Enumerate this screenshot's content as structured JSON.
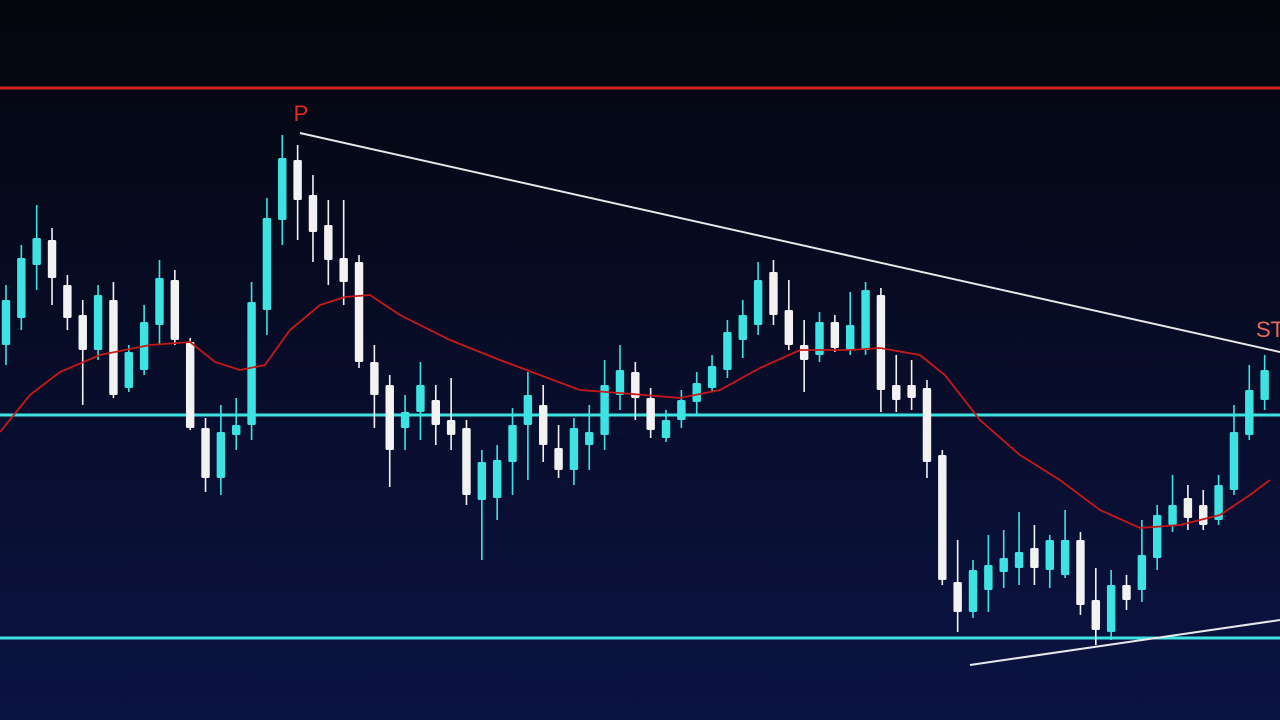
{
  "chart_data": {
    "type": "candlestick",
    "xlim": [
      0.61,
      84
    ],
    "ylim": [
      0,
      720
    ],
    "up_color": "#3de3e3",
    "down_color": "#f2f2f2",
    "x": [
      1,
      2,
      3,
      4,
      5,
      6,
      7,
      8,
      9,
      10,
      11,
      12,
      13,
      14,
      15,
      16,
      17,
      18,
      19,
      20,
      21,
      22,
      23,
      24,
      25,
      26,
      27,
      28,
      29,
      30,
      31,
      32,
      33,
      34,
      35,
      36,
      37,
      38,
      39,
      40,
      41,
      42,
      43,
      44,
      45,
      46,
      47,
      48,
      49,
      50,
      51,
      52,
      53,
      54,
      55,
      56,
      57,
      58,
      59,
      60,
      61,
      62,
      63,
      64,
      65,
      66,
      67,
      68,
      69,
      70,
      71,
      72,
      73,
      74,
      75,
      76,
      77,
      78,
      79,
      80,
      81,
      82,
      83
    ],
    "open": [
      375,
      402,
      455,
      480,
      435,
      405,
      370,
      420,
      332,
      350,
      395,
      440,
      378,
      292,
      242,
      285,
      295,
      410,
      500,
      560,
      525,
      495,
      462,
      458,
      358,
      335,
      292,
      308,
      320,
      300,
      292,
      220,
      222,
      258,
      295,
      315,
      272,
      250,
      275,
      285,
      325,
      348,
      322,
      282,
      300,
      318,
      332,
      350,
      380,
      395,
      448,
      410,
      375,
      365,
      398,
      370,
      370,
      425,
      335,
      335,
      332,
      265,
      138,
      108,
      130,
      148,
      152,
      172,
      150,
      145,
      180,
      120,
      88,
      135,
      130,
      162,
      195,
      222,
      215,
      200,
      230,
      285,
      320
    ],
    "high": [
      435,
      475,
      515,
      492,
      445,
      420,
      435,
      438,
      375,
      415,
      460,
      450,
      382,
      302,
      315,
      322,
      438,
      522,
      585,
      575,
      545,
      520,
      520,
      465,
      375,
      345,
      325,
      358,
      335,
      342,
      300,
      270,
      275,
      312,
      348,
      335,
      295,
      302,
      315,
      360,
      375,
      358,
      332,
      310,
      330,
      348,
      365,
      400,
      420,
      458,
      460,
      440,
      400,
      408,
      405,
      428,
      438,
      432,
      365,
      360,
      340,
      270,
      180,
      160,
      185,
      190,
      208,
      195,
      185,
      210,
      188,
      152,
      150,
      145,
      200,
      215,
      245,
      235,
      230,
      245,
      315,
      355,
      365
    ],
    "low": [
      355,
      390,
      430,
      415,
      390,
      315,
      360,
      322,
      328,
      345,
      375,
      375,
      290,
      228,
      225,
      270,
      280,
      385,
      475,
      480,
      458,
      435,
      415,
      352,
      292,
      233,
      270,
      280,
      275,
      270,
      215,
      160,
      200,
      225,
      240,
      258,
      242,
      235,
      250,
      270,
      310,
      300,
      282,
      278,
      292,
      305,
      328,
      342,
      362,
      385,
      395,
      370,
      328,
      358,
      368,
      365,
      365,
      308,
      308,
      310,
      242,
      135,
      88,
      102,
      108,
      132,
      135,
      135,
      132,
      142,
      105,
      75,
      80,
      110,
      118,
      150,
      188,
      190,
      190,
      195,
      225,
      280,
      310
    ],
    "close": [
      420,
      462,
      482,
      442,
      402,
      370,
      425,
      325,
      368,
      398,
      442,
      380,
      292,
      242,
      288,
      295,
      418,
      502,
      562,
      520,
      488,
      460,
      438,
      358,
      325,
      270,
      308,
      335,
      295,
      285,
      225,
      258,
      260,
      295,
      325,
      275,
      250,
      292,
      288,
      335,
      350,
      322,
      290,
      300,
      320,
      337,
      354,
      388,
      405,
      440,
      405,
      375,
      360,
      398,
      372,
      395,
      430,
      330,
      320,
      322,
      258,
      140,
      108,
      150,
      155,
      162,
      168,
      152,
      180,
      180,
      115,
      90,
      135,
      120,
      165,
      205,
      215,
      202,
      195,
      235,
      288,
      330,
      350
    ],
    "moving_average": {
      "color": "#c81818",
      "x": [
        0.61,
        2.56,
        4.52,
        7.12,
        10.38,
        12.99,
        14.62,
        16.24,
        17.87,
        19.5,
        21.46,
        23.08,
        24.71,
        26.67,
        29.93,
        33.18,
        35.79,
        38.39,
        41.0,
        44.91,
        47.51,
        50.12,
        52.73,
        55.98,
        57.94,
        60.54,
        62.17,
        64.45,
        67.06,
        69.66,
        72.27,
        74.88,
        77.48,
        80.09,
        82.04,
        83.35
      ],
      "values": [
        288,
        325,
        348,
        365,
        375,
        378,
        358,
        350,
        355,
        390,
        415,
        423,
        425,
        405,
        380,
        360,
        345,
        330,
        327,
        322,
        330,
        352,
        370,
        370,
        372,
        365,
        345,
        300,
        265,
        240,
        210,
        192,
        195,
        205,
        225,
        240
      ]
    },
    "levels": [
      {
        "value": 632,
        "color": "#d8201c"
      },
      {
        "value": 305,
        "color": "#3de3e3"
      },
      {
        "value": 82,
        "color": "#3de3e3"
      }
    ],
    "trendlines": [
      {
        "color": "#e8e8e8",
        "x": [
          20.15,
          84
        ],
        "values": [
          587,
          368
        ]
      },
      {
        "color": "#e8e8e8",
        "x": [
          63.8,
          84
        ],
        "values": [
          55,
          100
        ]
      }
    ],
    "annotations": [
      {
        "text": "P",
        "color": "#e8281e"
      },
      {
        "text": "ST",
        "color": "#e86a5e"
      }
    ]
  }
}
